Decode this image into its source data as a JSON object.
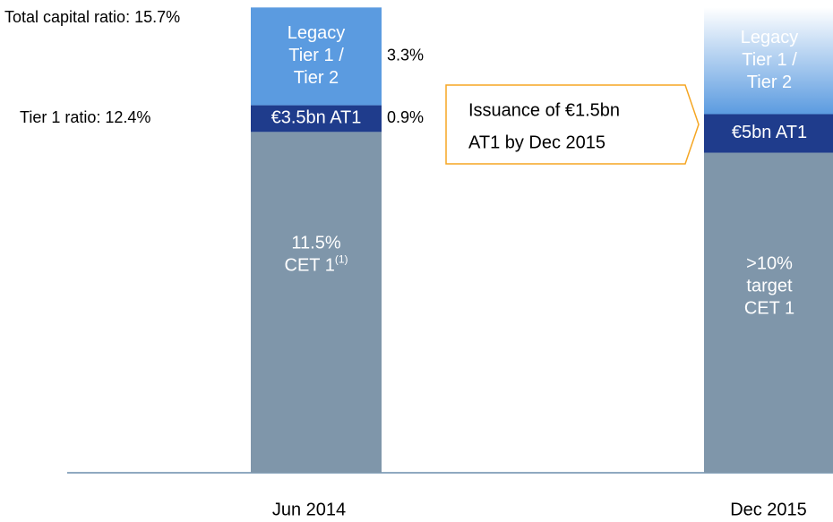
{
  "chart_data": {
    "type": "bar",
    "stacked": true,
    "categories": [
      "Jun 2014",
      "Dec 2015"
    ],
    "series": [
      {
        "color": "#7f96aa",
        "values": [
          11.5,
          10.8
        ],
        "value_labels": [
          "11.5%",
          null
        ],
        "value_label_position": "inside",
        "labels": [
          [
            "CET 1"
          ],
          [
            ">10%",
            "target",
            "CET 1"
          ]
        ],
        "footnote_marks": [
          "(1)",
          null
        ],
        "gradient": [
          false,
          false
        ]
      },
      {
        "color": "#1f3c8c",
        "values": [
          0.9,
          1.3
        ],
        "value_labels": [
          "0.9%",
          null
        ],
        "value_label_position": "outside",
        "labels": [
          [
            "€3.5bn AT1"
          ],
          [
            "€5bn AT1"
          ]
        ],
        "footnote_marks": [
          null,
          null
        ],
        "gradient": [
          false,
          false
        ]
      },
      {
        "color": "#5b9be0",
        "values": [
          3.3,
          3.6
        ],
        "value_labels": [
          "3.3%",
          null
        ],
        "value_label_position": "outside",
        "labels": [
          [
            "Legacy",
            "Tier 1 /",
            "Tier 2"
          ],
          [
            "Legacy",
            "Tier 1 /",
            "Tier 2"
          ]
        ],
        "footnote_marks": [
          null,
          null
        ],
        "gradient": [
          false,
          true
        ]
      }
    ],
    "annotations": [
      "Total capital ratio: 15.7%",
      "Tier 1 ratio: 12.4%"
    ],
    "callout": [
      "Issuance of €1.5bn",
      "AT1 by Dec 2015"
    ]
  }
}
